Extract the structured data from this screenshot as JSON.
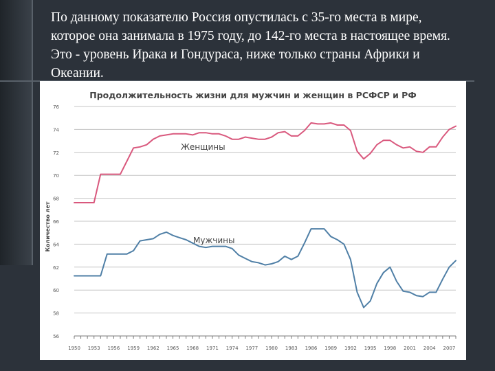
{
  "slide": {
    "text_lines": [
      " По данному показателю Россия опустилась с 35-го места в мире,",
      "которое она занимала в 1975 году, до 142-го места в настоящее время.",
      "Это - уровень Ирака и Гондураса, ниже только страны Африки и",
      "Океании."
    ]
  },
  "chart_data": {
    "type": "line",
    "title": "Продолжительность жизни для мужчин и женщин в РСФСР и РФ",
    "ylabel": "Количество лет",
    "xlabel": "",
    "ylim": [
      55,
      76
    ],
    "y_ticks": [
      "76",
      "74",
      "72",
      "70",
      "68",
      "66",
      "64",
      "62",
      "60",
      "58",
      "56"
    ],
    "x_ticks": [
      "1950",
      "1953",
      "1956",
      "1959",
      "1962",
      "1965",
      "1968",
      "1971",
      "1974",
      "1977",
      "1980",
      "1983",
      "1986",
      "1989",
      "1992",
      "1995",
      "1998",
      "2001",
      "2004",
      "2007"
    ],
    "x": [
      1950,
      1951,
      1952,
      1953,
      1954,
      1955,
      1956,
      1957,
      1958,
      1959,
      1960,
      1961,
      1962,
      1963,
      1964,
      1965,
      1966,
      1967,
      1968,
      1969,
      1970,
      1971,
      1972,
      1973,
      1974,
      1975,
      1976,
      1977,
      1978,
      1979,
      1980,
      1981,
      1982,
      1983,
      1984,
      1985,
      1986,
      1987,
      1988,
      1989,
      1990,
      1991,
      1992,
      1993,
      1994,
      1995,
      1996,
      1997,
      1998,
      1999,
      2000,
      2001,
      2002,
      2003,
      2004,
      2005,
      2006,
      2007,
      2008
    ],
    "series": [
      {
        "name": "Женщины",
        "color": "#d9587d",
        "values": [
          67.2,
          67.2,
          67.2,
          67.2,
          69.8,
          69.8,
          69.8,
          69.8,
          71.0,
          72.2,
          72.3,
          72.5,
          73.0,
          73.3,
          73.4,
          73.5,
          73.5,
          73.5,
          73.4,
          73.6,
          73.6,
          73.5,
          73.5,
          73.3,
          73.0,
          73.0,
          73.2,
          73.1,
          73.0,
          73.0,
          73.2,
          73.6,
          73.7,
          73.3,
          73.3,
          73.8,
          74.5,
          74.4,
          74.4,
          74.5,
          74.3,
          74.3,
          73.8,
          71.9,
          71.2,
          71.7,
          72.5,
          72.9,
          72.9,
          72.5,
          72.2,
          72.3,
          71.9,
          71.8,
          72.3,
          72.3,
          73.2,
          73.9,
          74.2
        ]
      },
      {
        "name": "Мужчины",
        "color": "#4f7fa6",
        "values": [
          60.5,
          60.5,
          60.5,
          60.5,
          60.5,
          62.5,
          62.5,
          62.5,
          62.5,
          62.8,
          63.7,
          63.8,
          63.9,
          64.3,
          64.5,
          64.2,
          64.0,
          63.8,
          63.5,
          63.2,
          63.1,
          63.2,
          63.2,
          63.2,
          63.0,
          62.4,
          62.1,
          61.8,
          61.7,
          61.5,
          61.6,
          61.8,
          62.3,
          62.0,
          62.3,
          63.5,
          64.8,
          64.8,
          64.8,
          64.1,
          63.8,
          63.4,
          62.0,
          59.0,
          57.6,
          58.2,
          59.8,
          60.8,
          61.3,
          60.0,
          59.1,
          59.0,
          58.7,
          58.6,
          59.0,
          59.0,
          60.2,
          61.3,
          61.9
        ]
      }
    ],
    "grid": true,
    "legend": "inline labels"
  }
}
